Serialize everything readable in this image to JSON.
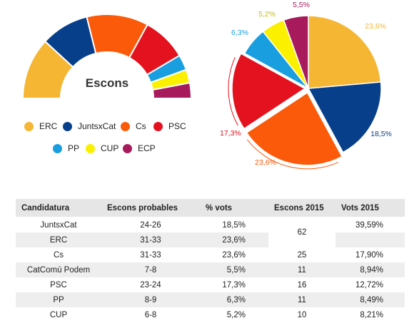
{
  "chart_data": [
    {
      "type": "pie",
      "variant": "semicircle",
      "title": "Escons",
      "slices": [
        {
          "name": "ERC",
          "value": 32,
          "color": "#f5b733"
        },
        {
          "name": "JuntsxCat",
          "value": 25,
          "color": "#073f8a"
        },
        {
          "name": "Cs",
          "value": 32,
          "color": "#fa5a0a"
        },
        {
          "name": "PSC",
          "value": 23,
          "color": "#e3121e"
        },
        {
          "name": "PP",
          "value": 8,
          "color": "#199ee0"
        },
        {
          "name": "CUP",
          "value": 7,
          "color": "#fbf000"
        },
        {
          "name": "ECP",
          "value": 8,
          "color": "#a71b5c"
        }
      ]
    },
    {
      "type": "pie",
      "slices": [
        {
          "value": 23.6,
          "label": "23,6%",
          "color": "#f5b733"
        },
        {
          "value": 18.5,
          "label": "18,5%",
          "color": "#073f8a"
        },
        {
          "value": 23.6,
          "label": "23,6%",
          "color": "#fa5a0a"
        },
        {
          "value": 17.3,
          "label": "17,3%",
          "color": "#e3121e"
        },
        {
          "value": 6.3,
          "label": "6,3%",
          "color": "#199ee0"
        },
        {
          "value": 5.2,
          "label": "5,2%",
          "color": "#fbf000"
        },
        {
          "value": 5.5,
          "label": "5,5%",
          "color": "#a71b5c"
        }
      ]
    },
    {
      "type": "table",
      "headers": [
        "Candidatura",
        "Escons probables",
        "% vots",
        "Escons 2015",
        "Vots 2015"
      ],
      "rows": [
        [
          "JuntsxCat",
          "24-26",
          "18,5%",
          "62",
          "39,59%"
        ],
        [
          "ERC",
          "31-33",
          "23,6%",
          "",
          ""
        ],
        [
          "Cs",
          "31-33",
          "23,6%",
          "25",
          "17,90%"
        ],
        [
          "CatComú Podem",
          "7-8",
          "5,5%",
          "11",
          "8,94%"
        ],
        [
          "PSC",
          "23-24",
          "17,3%",
          "16",
          "12,72%"
        ],
        [
          "PP",
          "8-9",
          "6,3%",
          "11",
          "8,49%"
        ],
        [
          "CUP",
          "6-8",
          "5,2%",
          "10",
          "8,21%"
        ]
      ]
    }
  ],
  "legend": [
    {
      "name": "ERC",
      "color": "#f5b733"
    },
    {
      "name": "JuntsxCat",
      "color": "#073f8a"
    },
    {
      "name": "Cs",
      "color": "#fa5a0a"
    },
    {
      "name": "PSC",
      "color": "#e3121e"
    },
    {
      "name": "PP",
      "color": "#199ee0"
    },
    {
      "name": "CUP",
      "color": "#fbf000"
    },
    {
      "name": "ECP",
      "color": "#a71b5c"
    }
  ]
}
